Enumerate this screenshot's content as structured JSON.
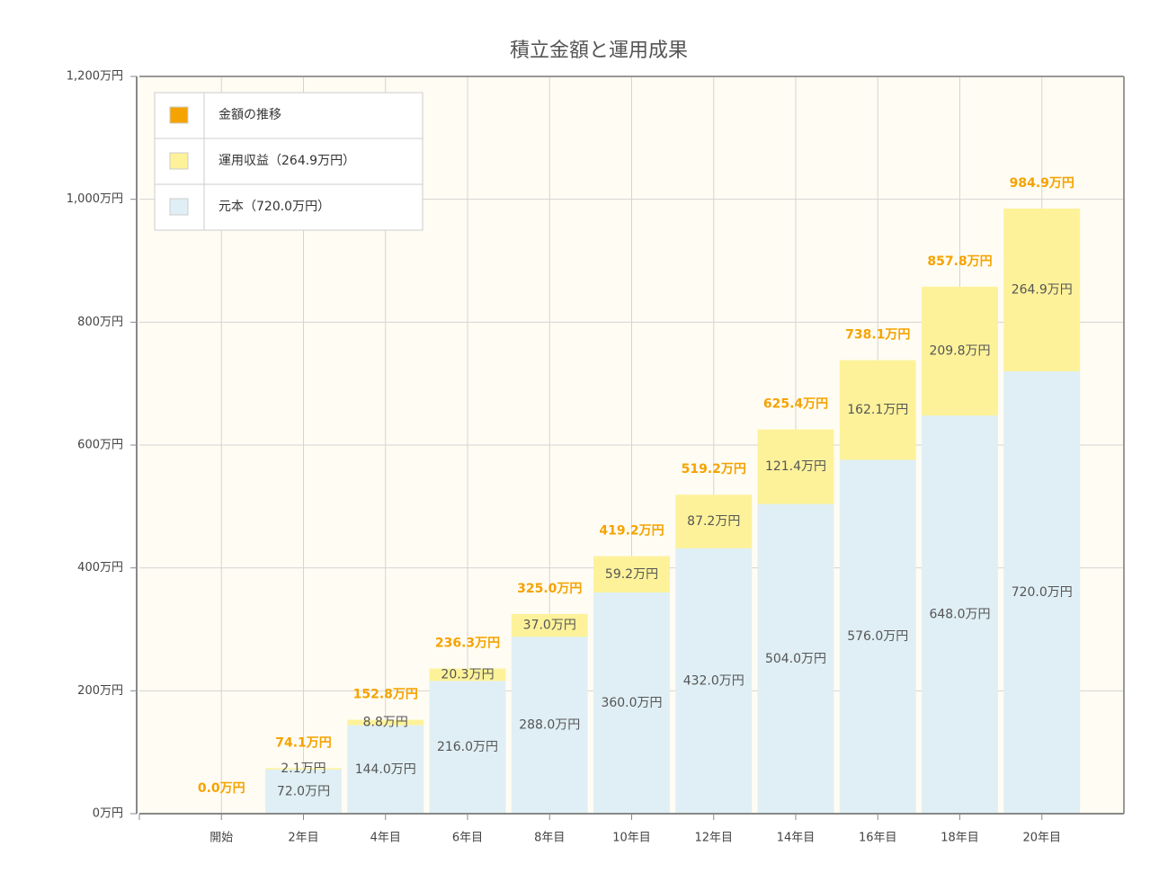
{
  "chart_data": {
    "type": "bar",
    "title": "積立金額と運用成果",
    "categories": [
      "開始",
      "2年目",
      "4年目",
      "6年目",
      "8年目",
      "10年目",
      "12年目",
      "14年目",
      "16年目",
      "18年目",
      "20年目"
    ],
    "series": [
      {
        "name": "金額の推移",
        "color": "#f5a300",
        "stacked": false,
        "values": [
          0.0,
          74.1,
          152.8,
          236.3,
          325.0,
          419.2,
          519.2,
          625.4,
          738.1,
          857.8,
          984.9
        ],
        "value_labels": [
          "0.0万円",
          "74.1万円",
          "152.8万円",
          "236.3万円",
          "325.0万円",
          "419.2万円",
          "519.2万円",
          "625.4万円",
          "738.1万円",
          "857.8万円",
          "984.9万円"
        ]
      },
      {
        "name": "運用収益（264.9万円）",
        "color": "#fdf29a",
        "stacked": true,
        "values": [
          0,
          2.1,
          8.8,
          20.3,
          37.0,
          59.2,
          87.2,
          121.4,
          162.1,
          209.8,
          264.9
        ],
        "value_labels": [
          null,
          "2.1万円",
          "8.8万円",
          "20.3万円",
          "37.0万円",
          "59.2万円",
          "87.2万円",
          "121.4万円",
          "162.1万円",
          "209.8万円",
          "264.9万円"
        ]
      },
      {
        "name": "元本（720.0万円）",
        "color": "#dfeff5",
        "stacked": true,
        "values": [
          0,
          72,
          144,
          216,
          288,
          360,
          432,
          504,
          576,
          648,
          720
        ],
        "value_labels": [
          null,
          "72.0万円",
          "144.0万円",
          "216.0万円",
          "288.0万円",
          "360.0万円",
          "432.0万円",
          "504.0万円",
          "576.0万円",
          "648.0万円",
          "720.0万円"
        ]
      }
    ],
    "ylim": [
      0,
      1200
    ],
    "yticks": [
      {
        "value": 0,
        "label": "0万円"
      },
      {
        "value": 200,
        "label": "200万円"
      },
      {
        "value": 400,
        "label": "400万円"
      },
      {
        "value": 600,
        "label": "600万円"
      },
      {
        "value": 800,
        "label": "800万円"
      },
      {
        "value": 1000,
        "label": "1,000万円"
      },
      {
        "value": 1200,
        "label": "1,200万円"
      }
    ],
    "grid": true
  }
}
